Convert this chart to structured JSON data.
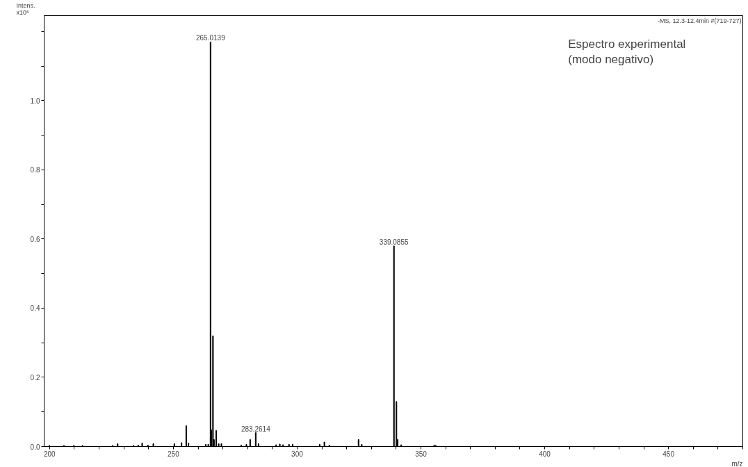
{
  "chart_data": {
    "type": "bar",
    "xlabel": "m/z",
    "ylabel": "Intens.\nx10⁶",
    "x": [
      199.9,
      205.8,
      209.8,
      213.3,
      225.5,
      227.5,
      233.9,
      235.8,
      237.4,
      239.7,
      241.9,
      250.4,
      253.3,
      255.2,
      256.1,
      263.1,
      264.1,
      265.01,
      265.3,
      266.0,
      266.4,
      267.3,
      268.3,
      269.4,
      277.4,
      279.5,
      281.0,
      283.26,
      284.4,
      291.5,
      293.0,
      294.3,
      296.7,
      298.2,
      309.1,
      311.0,
      313.0,
      324.8,
      326.1,
      339.09,
      340.09,
      340.6,
      342.0,
      355.3,
      355.6,
      356.0
    ],
    "values": [
      0.003,
      0.003,
      0.003,
      0.003,
      0.003,
      0.008,
      0.003,
      0.004,
      0.01,
      0.004,
      0.008,
      0.008,
      0.011,
      0.06,
      0.01,
      0.006,
      0.006,
      1.17,
      0.048,
      0.32,
      0.02,
      0.046,
      0.008,
      0.008,
      0.004,
      0.006,
      0.02,
      0.04,
      0.008,
      0.005,
      0.007,
      0.005,
      0.006,
      0.006,
      0.006,
      0.013,
      0.004,
      0.02,
      0.006,
      0.58,
      0.13,
      0.02,
      0.005,
      0.003,
      0.003,
      0.003
    ],
    "color": "#000000",
    "xlim": [
      197.8,
      480
    ],
    "ylim": [
      0,
      1.246
    ],
    "xticks": [
      200,
      {
        "value": 210,
        "label": null
      },
      {
        "value": 220,
        "label": null
      },
      {
        "value": 230,
        "label": null
      },
      {
        "value": 240,
        "label": null
      },
      250,
      {
        "value": 260,
        "label": null
      },
      {
        "value": 270,
        "label": null
      },
      {
        "value": 280,
        "label": null
      },
      {
        "value": 290,
        "label": null
      },
      300,
      {
        "value": 310,
        "label": null
      },
      {
        "value": 320,
        "label": null
      },
      {
        "value": 330,
        "label": null
      },
      {
        "value": 340,
        "label": null
      },
      350,
      {
        "value": 360,
        "label": null
      },
      {
        "value": 370,
        "label": null
      },
      {
        "value": 380,
        "label": null
      },
      {
        "value": 390,
        "label": null
      },
      400,
      {
        "value": 410,
        "label": null
      },
      {
        "value": 420,
        "label": null
      },
      {
        "value": 430,
        "label": null
      },
      {
        "value": 440,
        "label": null
      },
      450,
      {
        "value": 460,
        "label": null
      },
      {
        "value": 470,
        "label": null
      },
      {
        "value": 480,
        "label": null
      }
    ],
    "yticks": [
      {
        "value": 0,
        "label": "0.0"
      },
      {
        "value": 0.1,
        "label": null
      },
      {
        "value": 0.2,
        "label": "0.2"
      },
      {
        "value": 0.3,
        "label": null
      },
      {
        "value": 0.4,
        "label": "0.4"
      },
      {
        "value": 0.5,
        "label": null
      },
      {
        "value": 0.6,
        "label": "0.6"
      },
      {
        "value": 0.7,
        "label": null
      },
      {
        "value": 0.8,
        "label": "0.8"
      },
      {
        "value": 0.9,
        "label": null
      },
      {
        "value": 1.0,
        "label": "1.0"
      },
      {
        "value": 1.1,
        "label": null
      },
      {
        "value": 1.2,
        "label": null
      }
    ],
    "grid": false,
    "annotations": [
      {
        "text": "265.0139",
        "x": 265.01,
        "y": 1.17
      },
      {
        "text": "283.2614",
        "x": 283.26,
        "y": 0.04
      },
      {
        "text": "339.0855",
        "x": 339.09,
        "y": 0.58
      },
      "-MS, 12.3-12.4min #(719-727)",
      "Espectro experimental\n(modo negativo)"
    ]
  }
}
